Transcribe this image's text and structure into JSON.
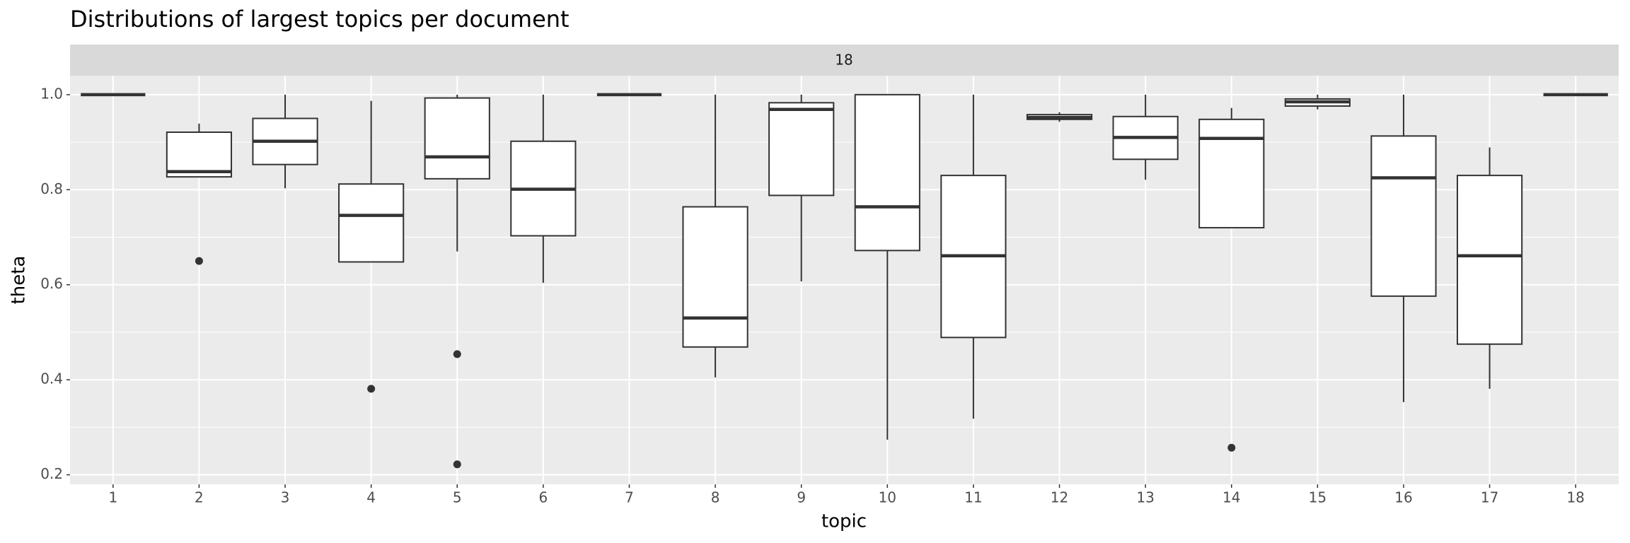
{
  "chart_data": {
    "type": "boxplot",
    "title": "Distributions of largest topics per document",
    "strip_label": "18",
    "x_label": "topic",
    "y_label": "theta",
    "categories": [
      "1",
      "2",
      "3",
      "4",
      "5",
      "6",
      "7",
      "8",
      "9",
      "10",
      "11",
      "12",
      "13",
      "14",
      "15",
      "16",
      "17",
      "18"
    ],
    "boxes": [
      {
        "whisker_low": 1,
        "q1": 1,
        "median": 1,
        "q3": 1,
        "whisker_high": 1,
        "outliers": []
      },
      {
        "whisker_low": 0.827,
        "q1": 0.827,
        "median": 0.838,
        "q3": 0.921,
        "whisker_high": 0.939,
        "outliers": [
          0.65
        ]
      },
      {
        "whisker_low": 0.803,
        "q1": 0.853,
        "median": 0.902,
        "q3": 0.95,
        "whisker_high": 1,
        "outliers": []
      },
      {
        "whisker_low": 0.648,
        "q1": 0.648,
        "median": 0.746,
        "q3": 0.812,
        "whisker_high": 0.987,
        "outliers": [
          0.381
        ]
      },
      {
        "whisker_low": 0.67,
        "q1": 0.823,
        "median": 0.869,
        "q3": 0.993,
        "whisker_high": 1,
        "outliers": [
          0.454,
          0.222
        ]
      },
      {
        "whisker_low": 0.604,
        "q1": 0.703,
        "median": 0.801,
        "q3": 0.902,
        "whisker_high": 1,
        "outliers": []
      },
      {
        "whisker_low": 1,
        "q1": 1,
        "median": 1,
        "q3": 1,
        "whisker_high": 1,
        "outliers": []
      },
      {
        "whisker_low": 0.405,
        "q1": 0.469,
        "median": 0.53,
        "q3": 0.764,
        "whisker_high": 1,
        "outliers": []
      },
      {
        "whisker_low": 0.607,
        "q1": 0.788,
        "median": 0.969,
        "q3": 0.983,
        "whisker_high": 1,
        "outliers": []
      },
      {
        "whisker_low": 0.274,
        "q1": 0.672,
        "median": 0.764,
        "q3": 1,
        "whisker_high": 1,
        "outliers": []
      },
      {
        "whisker_low": 0.318,
        "q1": 0.489,
        "median": 0.661,
        "q3": 0.83,
        "whisker_high": 1,
        "outliers": []
      },
      {
        "whisker_low": 0.943,
        "q1": 0.948,
        "median": 0.952,
        "q3": 0.958,
        "whisker_high": 0.963,
        "outliers": []
      },
      {
        "whisker_low": 0.821,
        "q1": 0.864,
        "median": 0.91,
        "q3": 0.954,
        "whisker_high": 1,
        "outliers": []
      },
      {
        "whisker_low": 0.72,
        "q1": 0.72,
        "median": 0.908,
        "q3": 0.948,
        "whisker_high": 0.972,
        "outliers": [
          0.257
        ]
      },
      {
        "whisker_low": 0.969,
        "q1": 0.976,
        "median": 0.985,
        "q3": 0.991,
        "whisker_high": 1,
        "outliers": []
      },
      {
        "whisker_low": 0.353,
        "q1": 0.576,
        "median": 0.825,
        "q3": 0.913,
        "whisker_high": 1,
        "outliers": []
      },
      {
        "whisker_low": 0.381,
        "q1": 0.475,
        "median": 0.661,
        "q3": 0.83,
        "whisker_high": 0.889,
        "outliers": []
      },
      {
        "whisker_low": 1,
        "q1": 1,
        "median": 1,
        "q3": 1,
        "whisker_high": 1,
        "outliers": []
      }
    ],
    "ylim": [
      0.18,
      1.04
    ],
    "yticks": [
      0.2,
      0.4,
      0.6,
      0.8,
      {
        "value": 1,
        "label": "1.0"
      }
    ],
    "grid": true,
    "box_color": "#333333",
    "box_fill": "#ffffff"
  }
}
